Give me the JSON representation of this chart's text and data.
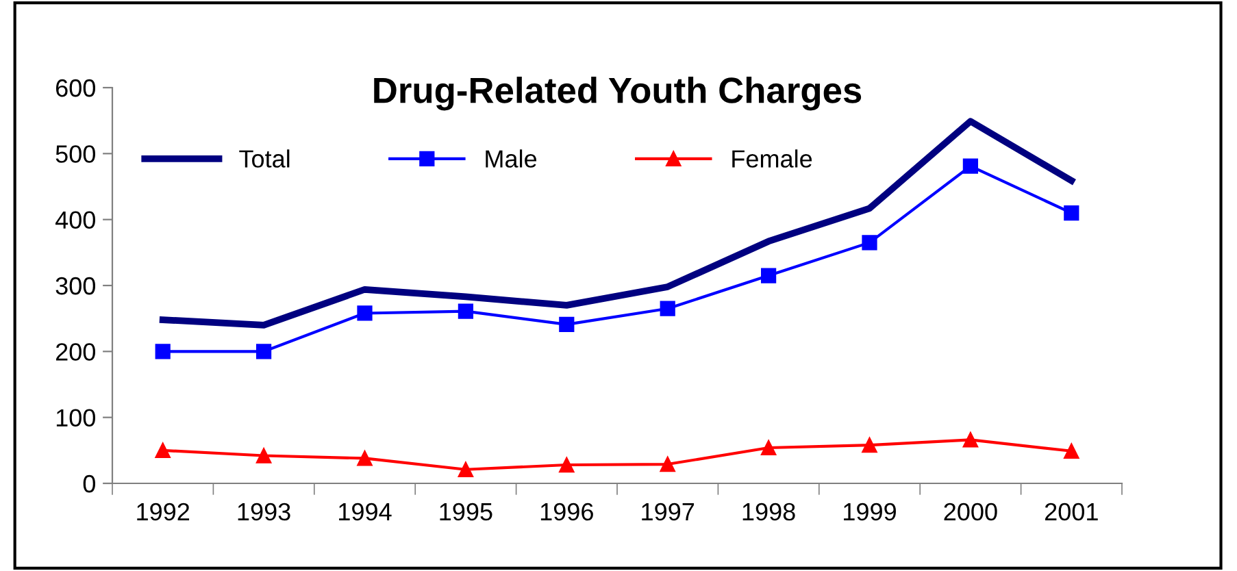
{
  "chart_data": {
    "type": "line",
    "title": "Drug-Related Youth Charges",
    "categories": [
      "1992",
      "1993",
      "1994",
      "1995",
      "1996",
      "1997",
      "1998",
      "1999",
      "2000",
      "2001"
    ],
    "series": [
      {
        "name": "Total",
        "color": "#000080",
        "marker": "none",
        "values": [
          248,
          240,
          294,
          283,
          270,
          298,
          367,
          417,
          549,
          459
        ]
      },
      {
        "name": "Male",
        "color": "#0000ff",
        "marker": "square",
        "values": [
          200,
          200,
          258,
          261,
          241,
          265,
          315,
          365,
          481,
          410
        ]
      },
      {
        "name": "Female",
        "color": "#ff0000",
        "marker": "triangle",
        "values": [
          50,
          42,
          38,
          21,
          28,
          29,
          54,
          58,
          66,
          49
        ]
      }
    ],
    "ylim": [
      0,
      600
    ],
    "yticks": [
      0,
      100,
      200,
      300,
      400,
      500,
      600
    ],
    "grid": false,
    "legend": "top left",
    "line_style": "solid"
  }
}
